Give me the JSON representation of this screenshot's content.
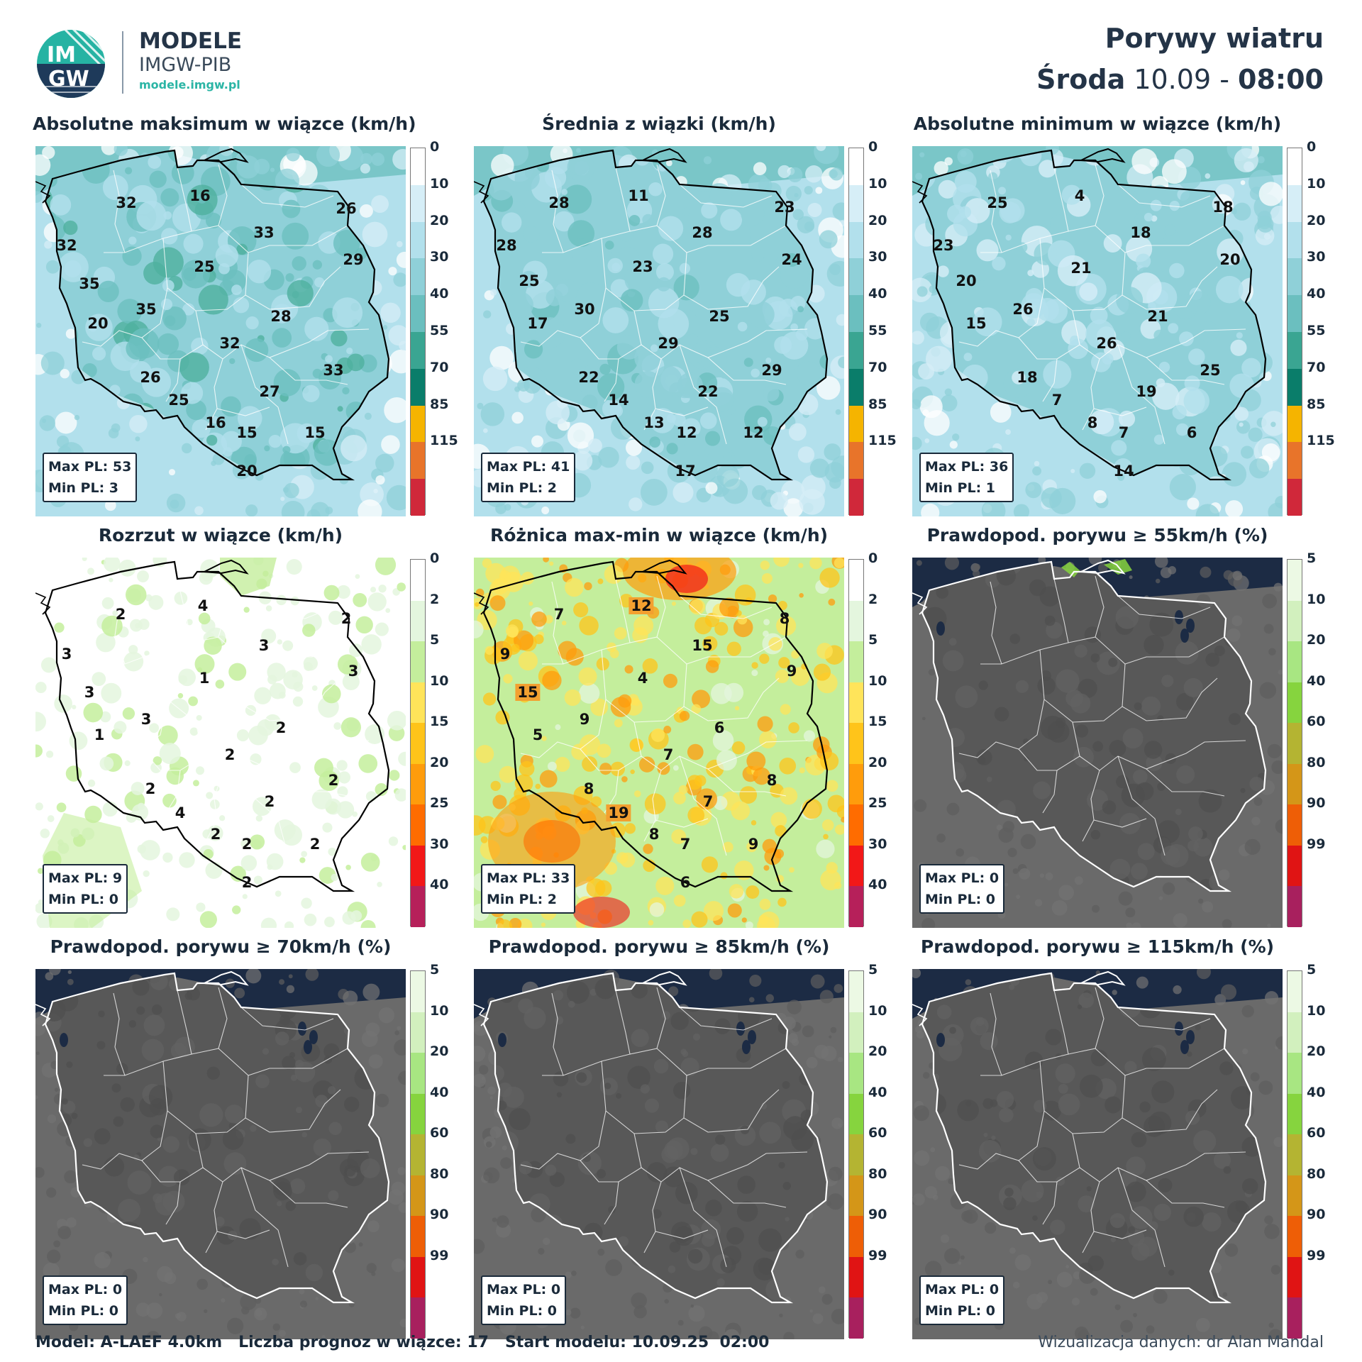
{
  "header": {
    "brand_name": "MODELE",
    "brand_sub": "IMGW-PIB",
    "brand_url": "modele.imgw.pl",
    "logo_text_top": "IM",
    "logo_text_bottom": "GW",
    "title": "Porywy wiatru",
    "day": "Środa",
    "date": "10.09",
    "separator": "-",
    "time": "08:00"
  },
  "scales": {
    "wind": {
      "ticks": [
        "0",
        "10",
        "20",
        "30",
        "40",
        "55",
        "70",
        "85",
        "115"
      ],
      "colors": [
        "#ffffff",
        "#d6eef7",
        "#b2e0ec",
        "#8fd0d8",
        "#6bbfbf",
        "#3aa592",
        "#0a7d6a",
        "#f5b400",
        "#e8742a",
        "#d0283a"
      ]
    },
    "spread": {
      "ticks": [
        "0",
        "2",
        "5",
        "10",
        "15",
        "20",
        "25",
        "30",
        "40"
      ],
      "colors": [
        "#ffffff",
        "#e4f6de",
        "#c4ee9c",
        "#ffe45a",
        "#ffc41a",
        "#ff9c0c",
        "#ff6c00",
        "#f21818",
        "#b6205a"
      ]
    },
    "prob": {
      "ticks": [
        "5",
        "10",
        "20",
        "40",
        "60",
        "80",
        "90",
        "99"
      ],
      "colors": [
        "#ecf9e4",
        "#d2f0be",
        "#a8e682",
        "#86d43e",
        "#b4b432",
        "#d49618",
        "#ee5e06",
        "#e01414",
        "#a8205e"
      ]
    }
  },
  "panels": [
    {
      "title": "Absolutne maksimum w wiązce (km/h)",
      "style": "wind",
      "stats": {
        "max": "Max PL: 53",
        "min": "Min PL: 3"
      },
      "labels": [
        {
          "v": "16",
          "x": 232,
          "y": 70
        },
        {
          "v": "32",
          "x": 128,
          "y": 80
        },
        {
          "v": "26",
          "x": 438,
          "y": 88
        },
        {
          "v": "32",
          "x": 44,
          "y": 140
        },
        {
          "v": "33",
          "x": 322,
          "y": 122
        },
        {
          "v": "29",
          "x": 448,
          "y": 160
        },
        {
          "v": "35",
          "x": 76,
          "y": 194
        },
        {
          "v": "25",
          "x": 238,
          "y": 170
        },
        {
          "v": "35",
          "x": 156,
          "y": 230
        },
        {
          "v": "20",
          "x": 88,
          "y": 250
        },
        {
          "v": "28",
          "x": 346,
          "y": 240
        },
        {
          "v": "32",
          "x": 274,
          "y": 278
        },
        {
          "v": "26",
          "x": 162,
          "y": 326
        },
        {
          "v": "33",
          "x": 420,
          "y": 316
        },
        {
          "v": "27",
          "x": 330,
          "y": 346
        },
        {
          "v": "25",
          "x": 202,
          "y": 358
        },
        {
          "v": "16",
          "x": 254,
          "y": 390
        },
        {
          "v": "15",
          "x": 298,
          "y": 404
        },
        {
          "v": "15",
          "x": 394,
          "y": 404
        },
        {
          "v": "20",
          "x": 298,
          "y": 458
        }
      ]
    },
    {
      "title": "Średnia z wiązki (km/h)",
      "style": "wind",
      "stats": {
        "max": "Max PL: 41",
        "min": "Min PL: 2"
      },
      "labels": [
        {
          "v": "11",
          "x": 232,
          "y": 70
        },
        {
          "v": "28",
          "x": 120,
          "y": 80
        },
        {
          "v": "23",
          "x": 438,
          "y": 86
        },
        {
          "v": "28",
          "x": 46,
          "y": 140
        },
        {
          "v": "28",
          "x": 322,
          "y": 122
        },
        {
          "v": "24",
          "x": 448,
          "y": 160
        },
        {
          "v": "25",
          "x": 78,
          "y": 190
        },
        {
          "v": "23",
          "x": 238,
          "y": 170
        },
        {
          "v": "30",
          "x": 156,
          "y": 230
        },
        {
          "v": "17",
          "x": 90,
          "y": 250
        },
        {
          "v": "25",
          "x": 346,
          "y": 240
        },
        {
          "v": "29",
          "x": 274,
          "y": 278
        },
        {
          "v": "22",
          "x": 162,
          "y": 326
        },
        {
          "v": "29",
          "x": 420,
          "y": 316
        },
        {
          "v": "22",
          "x": 330,
          "y": 346
        },
        {
          "v": "14",
          "x": 204,
          "y": 358
        },
        {
          "v": "13",
          "x": 254,
          "y": 390
        },
        {
          "v": "12",
          "x": 300,
          "y": 404
        },
        {
          "v": "12",
          "x": 394,
          "y": 404
        },
        {
          "v": "17",
          "x": 298,
          "y": 458
        }
      ]
    },
    {
      "title": "Absolutne minimum w wiązce (km/h)",
      "style": "wind",
      "stats": {
        "max": "Max PL: 36",
        "min": "Min PL: 1"
      },
      "labels": [
        {
          "v": "4",
          "x": 236,
          "y": 70
        },
        {
          "v": "25",
          "x": 120,
          "y": 80
        },
        {
          "v": "18",
          "x": 438,
          "y": 86
        },
        {
          "v": "23",
          "x": 44,
          "y": 140
        },
        {
          "v": "18",
          "x": 322,
          "y": 122
        },
        {
          "v": "20",
          "x": 448,
          "y": 160
        },
        {
          "v": "20",
          "x": 76,
          "y": 190
        },
        {
          "v": "21",
          "x": 238,
          "y": 172
        },
        {
          "v": "26",
          "x": 156,
          "y": 230
        },
        {
          "v": "15",
          "x": 90,
          "y": 250
        },
        {
          "v": "21",
          "x": 346,
          "y": 240
        },
        {
          "v": "26",
          "x": 274,
          "y": 278
        },
        {
          "v": "18",
          "x": 162,
          "y": 326
        },
        {
          "v": "25",
          "x": 420,
          "y": 316
        },
        {
          "v": "19",
          "x": 330,
          "y": 346
        },
        {
          "v": "7",
          "x": 204,
          "y": 358
        },
        {
          "v": "8",
          "x": 254,
          "y": 390
        },
        {
          "v": "7",
          "x": 298,
          "y": 404
        },
        {
          "v": "6",
          "x": 394,
          "y": 404
        },
        {
          "v": "14",
          "x": 298,
          "y": 458
        }
      ]
    },
    {
      "title": "Rozrzut w wiązce (km/h)",
      "style": "spread",
      "stats": {
        "max": "Max PL: 9",
        "min": "Min PL: 0"
      },
      "labels": [
        {
          "v": "4",
          "x": 236,
          "y": 68
        },
        {
          "v": "2",
          "x": 120,
          "y": 80
        },
        {
          "v": "2",
          "x": 438,
          "y": 86
        },
        {
          "v": "3",
          "x": 44,
          "y": 136
        },
        {
          "v": "3",
          "x": 322,
          "y": 124
        },
        {
          "v": "3",
          "x": 448,
          "y": 160
        },
        {
          "v": "3",
          "x": 76,
          "y": 190
        },
        {
          "v": "1",
          "x": 238,
          "y": 170
        },
        {
          "v": "3",
          "x": 156,
          "y": 228
        },
        {
          "v": "1",
          "x": 90,
          "y": 250
        },
        {
          "v": "2",
          "x": 346,
          "y": 240
        },
        {
          "v": "2",
          "x": 274,
          "y": 278
        },
        {
          "v": "2",
          "x": 162,
          "y": 326
        },
        {
          "v": "2",
          "x": 420,
          "y": 314
        },
        {
          "v": "2",
          "x": 330,
          "y": 344
        },
        {
          "v": "4",
          "x": 204,
          "y": 360
        },
        {
          "v": "2",
          "x": 254,
          "y": 390
        },
        {
          "v": "2",
          "x": 298,
          "y": 404
        },
        {
          "v": "2",
          "x": 394,
          "y": 404
        },
        {
          "v": "2",
          "x": 298,
          "y": 458
        }
      ]
    },
    {
      "title": "Różnica max-min w wiązce (km/h)",
      "style": "spread-hot",
      "stats": {
        "max": "Max PL: 33",
        "min": "Min PL: 2"
      },
      "labels": [
        {
          "v": "12",
          "x": 236,
          "y": 68,
          "boxed": true
        },
        {
          "v": "7",
          "x": 120,
          "y": 80
        },
        {
          "v": "8",
          "x": 438,
          "y": 86
        },
        {
          "v": "9",
          "x": 44,
          "y": 136
        },
        {
          "v": "15",
          "x": 322,
          "y": 124
        },
        {
          "v": "9",
          "x": 448,
          "y": 160
        },
        {
          "v": "15",
          "x": 76,
          "y": 190,
          "boxed": true
        },
        {
          "v": "4",
          "x": 238,
          "y": 170
        },
        {
          "v": "9",
          "x": 156,
          "y": 228
        },
        {
          "v": "5",
          "x": 90,
          "y": 250
        },
        {
          "v": "6",
          "x": 346,
          "y": 240
        },
        {
          "v": "7",
          "x": 274,
          "y": 278
        },
        {
          "v": "8",
          "x": 162,
          "y": 326
        },
        {
          "v": "8",
          "x": 420,
          "y": 314
        },
        {
          "v": "7",
          "x": 330,
          "y": 344
        },
        {
          "v": "19",
          "x": 204,
          "y": 360,
          "boxed": true
        },
        {
          "v": "8",
          "x": 254,
          "y": 390
        },
        {
          "v": "7",
          "x": 298,
          "y": 404
        },
        {
          "v": "9",
          "x": 394,
          "y": 404
        },
        {
          "v": "6",
          "x": 298,
          "y": 458
        }
      ]
    },
    {
      "title": "Prawdopod. porywu ≥ 55km/h (%)",
      "style": "prob",
      "stats": {
        "max": "Max PL: 0",
        "min": "Min PL: 0"
      },
      "labels": []
    },
    {
      "title": "Prawdopod. porywu ≥ 70km/h (%)",
      "style": "prob",
      "stats": {
        "max": "Max PL: 0",
        "min": "Min PL: 0"
      },
      "labels": []
    },
    {
      "title": "Prawdopod. porywu ≥ 85km/h (%)",
      "style": "prob",
      "stats": {
        "max": "Max PL: 0",
        "min": "Min PL: 0"
      },
      "labels": []
    },
    {
      "title": "Prawdopod. porywu ≥ 115km/h (%)",
      "style": "prob",
      "stats": {
        "max": "Max PL: 0",
        "min": "Min PL: 0"
      },
      "labels": []
    }
  ],
  "footer": {
    "model": "Model: A-LAEF 4.0km   Liczba prognoz w wiązce: 17   Start modelu: 10.09.25  02:00",
    "credit": "Wizualizacja danych: dr Alan Mandal"
  }
}
